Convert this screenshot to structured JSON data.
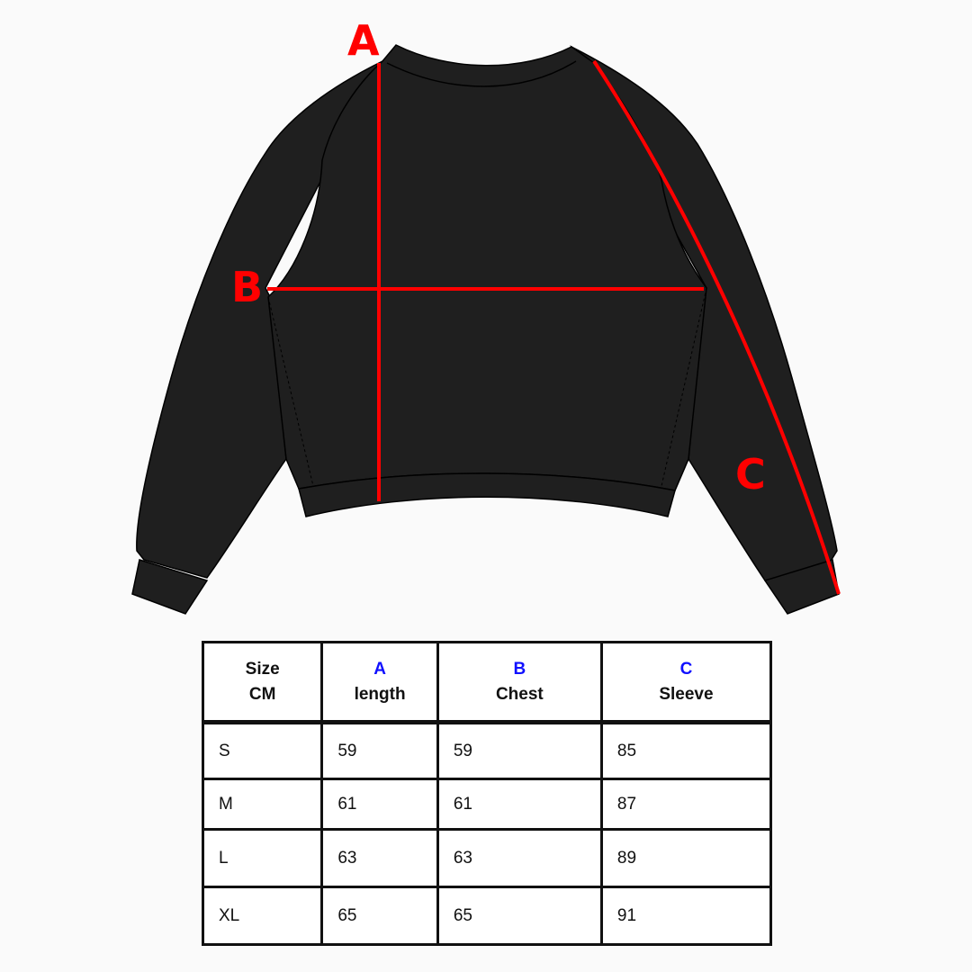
{
  "labels": {
    "a": "A",
    "b": "B",
    "c": "C"
  },
  "colors": {
    "garment": "#1f1f1f",
    "measure_line": "#ff0000",
    "header_letter": "#1010ff"
  },
  "table": {
    "headers": [
      {
        "key": "Size",
        "name": "CM"
      },
      {
        "key": "A",
        "name": "length"
      },
      {
        "key": "B",
        "name": "Chest"
      },
      {
        "key": "C",
        "name": "Sleeve"
      }
    ],
    "rows": [
      [
        "S",
        "59",
        "59",
        "85"
      ],
      [
        "M",
        "61",
        "61",
        "87"
      ],
      [
        "L",
        "63",
        "63",
        "89"
      ],
      [
        "XL",
        "65",
        "65",
        "91"
      ]
    ]
  }
}
